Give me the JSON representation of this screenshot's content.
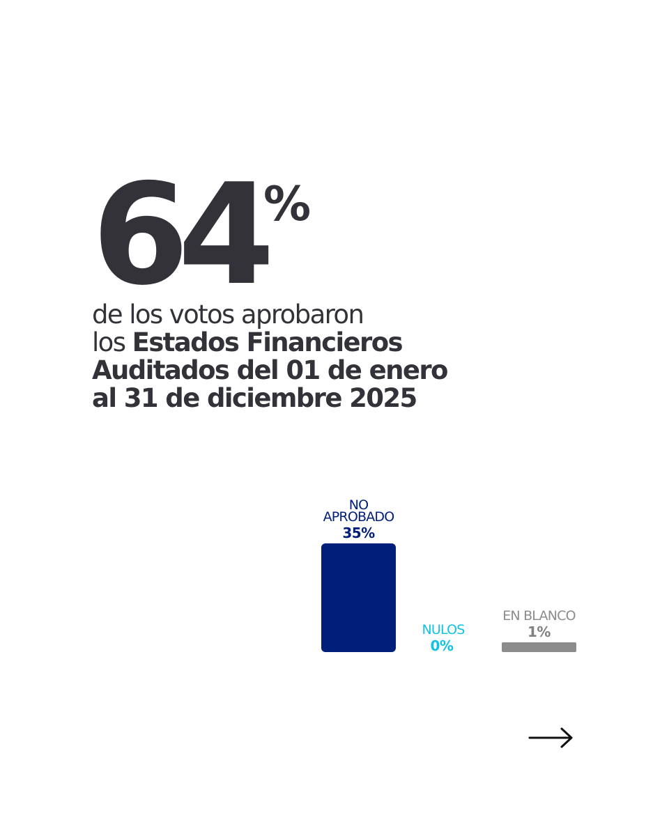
{
  "headline": {
    "value": "64",
    "unit": "%"
  },
  "statement": {
    "line1_light": "de los votos aprobaron",
    "line2_light": "los ",
    "line2_bold": "Estados Financieros",
    "line3_bold": "Auditados del 01 de enero",
    "line4_bold": "al 31 de diciembre 2025"
  },
  "colors": {
    "text": "#333238",
    "no_aprobado": "#001E7A",
    "nulos": "#12C2E3",
    "en_blanco": "#8C8C8C"
  },
  "chart_data": {
    "type": "bar",
    "categories": [
      {
        "lines": [
          "NO",
          "APROBADO"
        ],
        "value_label": "35%"
      },
      {
        "lines": [
          "NULOS"
        ],
        "value_label": "0%"
      },
      {
        "lines": [
          "EN BLANCO"
        ],
        "value_label": "1%"
      }
    ],
    "values": [
      35,
      0,
      1
    ],
    "unit": "%",
    "colors": [
      "#001E7A",
      "#12C2E3",
      "#8C8C8C"
    ],
    "ylim": [
      0,
      35
    ],
    "grid": false,
    "legend": "none"
  },
  "navigation": {
    "next_icon": "arrow-right-icon"
  }
}
